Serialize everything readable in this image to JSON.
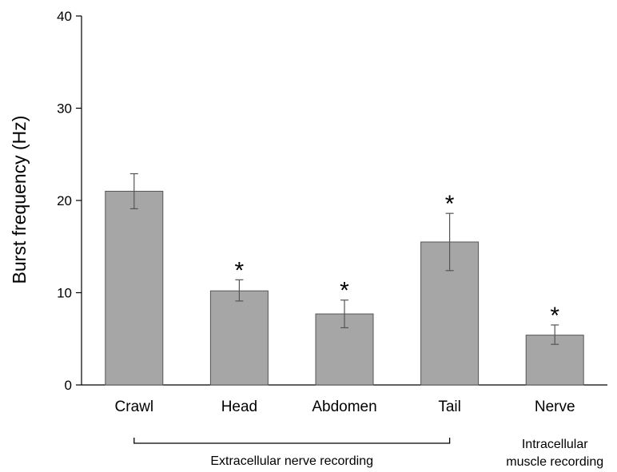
{
  "chart_data": {
    "type": "bar",
    "ylabel": "Burst frequency (Hz)",
    "xlabel": "",
    "ylim": [
      0,
      40
    ],
    "yticks": [
      0,
      10,
      20,
      30,
      40
    ],
    "categories": [
      "Crawl",
      "Head",
      "Abdomen",
      "Tail",
      "Nerve"
    ],
    "values": [
      21.0,
      10.2,
      7.7,
      15.5,
      5.4
    ],
    "error_plus": [
      1.9,
      1.2,
      1.5,
      3.1,
      1.1
    ],
    "error_minus": [
      1.9,
      1.1,
      1.5,
      3.1,
      1.0
    ],
    "significance": [
      "",
      "*",
      "*",
      "*",
      "*"
    ],
    "groups": [
      {
        "label": "Extracellular nerve recording",
        "categories": [
          "Crawl",
          "Head",
          "Abdomen",
          "Tail"
        ]
      },
      {
        "label_lines": [
          "Intracellular",
          "muscle recording"
        ],
        "categories": [
          "Nerve"
        ]
      }
    ],
    "grid": false,
    "bar_color": "#a6a6a6"
  }
}
